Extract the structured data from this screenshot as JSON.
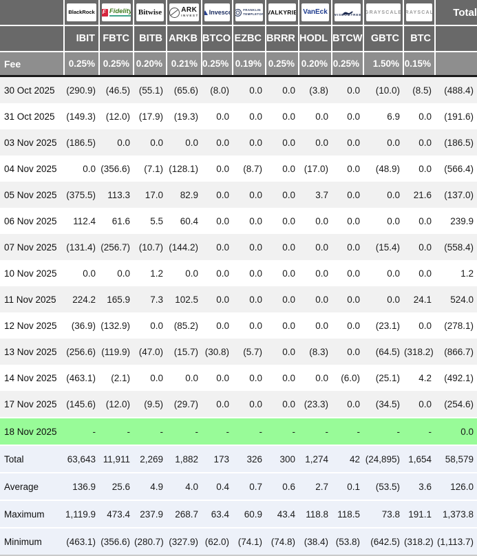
{
  "table": {
    "fee_label": "Fee",
    "total_header": "Total",
    "colors": {
      "negative_red": "#e60000",
      "active_row_green": "#98fb98",
      "header_gray": "#696969",
      "fee_row_gray": "#8e8e8e",
      "stripe_gray": "#f1f1f1",
      "summary_row_bg": "#edf1f9",
      "fidelity_red": "#d6263e",
      "fidelity_green": "#3f7a1f",
      "invesco_navy": "#16295e",
      "vaneck_blue": "#1c3a8e",
      "grayscale_gray": "#9b9b9b"
    },
    "columns": [
      {
        "id": "ibit",
        "provider": "BlackRock",
        "ticker": "IBIT",
        "fee": "0.25%",
        "logo": {
          "style": "blackrock",
          "lines": [
            "BlackRock"
          ]
        }
      },
      {
        "id": "fbtc",
        "provider": "Fidelity",
        "ticker": "FBTC",
        "fee": "0.25%",
        "logo": {
          "style": "fidelity",
          "icon": "fidelity-f",
          "icon_text": "F",
          "lines": [
            "Fidelity"
          ]
        }
      },
      {
        "id": "bitb",
        "provider": "Bitwise",
        "ticker": "BITB",
        "fee": "0.20%",
        "logo": {
          "style": "bitwise",
          "lines": [
            "Bitwise"
          ]
        }
      },
      {
        "id": "arkb",
        "provider": "ARK Invest",
        "ticker": "ARKB",
        "fee": "0.21%",
        "logo": {
          "style": "ark",
          "icon": "ark-ring",
          "lines": [
            "ARK",
            "INVEST"
          ]
        }
      },
      {
        "id": "btco",
        "provider": "Invesco",
        "ticker": "BTCO",
        "fee": "0.25%",
        "logo": {
          "style": "invesco",
          "icon": "invesco-triangle",
          "lines": [
            "Invesco"
          ]
        }
      },
      {
        "id": "ezbc",
        "provider": "Franklin Templeton",
        "ticker": "EZBC",
        "fee": "0.19%",
        "logo": {
          "style": "franklin",
          "icon": "franklin-seal",
          "lines": [
            "FRANKLIN",
            "TEMPLETON"
          ]
        }
      },
      {
        "id": "brrr",
        "provider": "Valkyrie",
        "ticker": "BRRR",
        "fee": "0.25%",
        "logo": {
          "style": "valkyrie",
          "lines": [
            "VALKYRIE"
          ]
        }
      },
      {
        "id": "hodl",
        "provider": "VanEck",
        "ticker": "HODL",
        "fee": "0.20%",
        "logo": {
          "style": "vaneck",
          "lines": [
            "VanEck"
          ]
        }
      },
      {
        "id": "btcw",
        "provider": "WisdomTree",
        "ticker": "BTCW",
        "fee": "0.25%",
        "logo": {
          "style": "wisdomtree",
          "icon": "wisdomtree-tree",
          "lines": [
            "WISDOMTREE"
          ]
        }
      },
      {
        "id": "gbtc",
        "provider": "Grayscale",
        "ticker": "GBTC",
        "fee": "1.50%",
        "logo": {
          "style": "grayscale",
          "lines": [
            "GRAYSCALE"
          ]
        }
      },
      {
        "id": "btc",
        "provider": "Grayscale",
        "ticker": "BTC",
        "fee": "0.15%",
        "logo": {
          "style": "grayscale",
          "lines": [
            "GRAYSCALE"
          ]
        }
      }
    ],
    "rows": [
      {
        "label": "30 Oct 2025",
        "values": [
          "(290.9)",
          "(46.5)",
          "(55.1)",
          "(65.6)",
          "(8.0)",
          "0.0",
          "0.0",
          "(3.8)",
          "0.0",
          "(10.0)",
          "(8.5)",
          "(488.4)"
        ]
      },
      {
        "label": "31 Oct 2025",
        "values": [
          "(149.3)",
          "(12.0)",
          "(17.9)",
          "(19.3)",
          "0.0",
          "0.0",
          "0.0",
          "0.0",
          "0.0",
          "6.9",
          "0.0",
          "(191.6)"
        ]
      },
      {
        "label": "03 Nov 2025",
        "values": [
          "(186.5)",
          "0.0",
          "0.0",
          "0.0",
          "0.0",
          "0.0",
          "0.0",
          "0.0",
          "0.0",
          "0.0",
          "0.0",
          "(186.5)"
        ]
      },
      {
        "label": "04 Nov 2025",
        "values": [
          "0.0",
          "(356.6)",
          "(7.1)",
          "(128.1)",
          "0.0",
          "(8.7)",
          "0.0",
          "(17.0)",
          "0.0",
          "(48.9)",
          "0.0",
          "(566.4)"
        ]
      },
      {
        "label": "05 Nov 2025",
        "values": [
          "(375.5)",
          "113.3",
          "17.0",
          "82.9",
          "0.0",
          "0.0",
          "0.0",
          "3.7",
          "0.0",
          "0.0",
          "21.6",
          "(137.0)"
        ]
      },
      {
        "label": "06 Nov 2025",
        "values": [
          "112.4",
          "61.6",
          "5.5",
          "60.4",
          "0.0",
          "0.0",
          "0.0",
          "0.0",
          "0.0",
          "0.0",
          "0.0",
          "239.9"
        ]
      },
      {
        "label": "07 Nov 2025",
        "values": [
          "(131.4)",
          "(256.7)",
          "(10.7)",
          "(144.2)",
          "0.0",
          "0.0",
          "0.0",
          "0.0",
          "0.0",
          "(15.4)",
          "0.0",
          "(558.4)"
        ]
      },
      {
        "label": "10 Nov 2025",
        "values": [
          "0.0",
          "0.0",
          "1.2",
          "0.0",
          "0.0",
          "0.0",
          "0.0",
          "0.0",
          "0.0",
          "0.0",
          "0.0",
          "1.2"
        ]
      },
      {
        "label": "11 Nov 2025",
        "values": [
          "224.2",
          "165.9",
          "7.3",
          "102.5",
          "0.0",
          "0.0",
          "0.0",
          "0.0",
          "0.0",
          "0.0",
          "24.1",
          "524.0"
        ]
      },
      {
        "label": "12 Nov 2025",
        "values": [
          "(36.9)",
          "(132.9)",
          "0.0",
          "(85.2)",
          "0.0",
          "0.0",
          "0.0",
          "0.0",
          "0.0",
          "(23.1)",
          "0.0",
          "(278.1)"
        ]
      },
      {
        "label": "13 Nov 2025",
        "values": [
          "(256.6)",
          "(119.9)",
          "(47.0)",
          "(15.7)",
          "(30.8)",
          "(5.7)",
          "0.0",
          "(8.3)",
          "0.0",
          "(64.5)",
          "(318.2)",
          "(866.7)"
        ]
      },
      {
        "label": "14 Nov 2025",
        "values": [
          "(463.1)",
          "(2.1)",
          "0.0",
          "0.0",
          "0.0",
          "0.0",
          "0.0",
          "0.0",
          "(6.0)",
          "(25.1)",
          "4.2",
          "(492.1)"
        ]
      },
      {
        "label": "17 Nov 2025",
        "values": [
          "(145.6)",
          "(12.0)",
          "(9.5)",
          "(29.7)",
          "0.0",
          "0.0",
          "0.0",
          "(23.3)",
          "0.0",
          "(34.5)",
          "0.0",
          "(254.6)"
        ]
      },
      {
        "label": "18 Nov 2025",
        "highlight": true,
        "values": [
          "-",
          "-",
          "-",
          "-",
          "-",
          "-",
          "-",
          "-",
          "-",
          "-",
          "-",
          "0.0"
        ]
      }
    ],
    "summary_rows": [
      {
        "label": "Total",
        "values": [
          "63,643",
          "11,911",
          "2,269",
          "1,882",
          "173",
          "326",
          "300",
          "1,274",
          "42",
          "(24,895)",
          "1,654",
          "58,579"
        ]
      },
      {
        "label": "Average",
        "values": [
          "136.9",
          "25.6",
          "4.9",
          "4.0",
          "0.4",
          "0.7",
          "0.6",
          "2.7",
          "0.1",
          "(53.5)",
          "3.6",
          "126.0"
        ]
      },
      {
        "label": "Maximum",
        "values": [
          "1,119.9",
          "473.4",
          "237.9",
          "268.7",
          "63.4",
          "60.9",
          "43.4",
          "118.8",
          "118.5",
          "73.8",
          "191.1",
          "1,373.8"
        ]
      },
      {
        "label": "Minimum",
        "values": [
          "(463.1)",
          "(356.6)",
          "(280.7)",
          "(327.9)",
          "(62.0)",
          "(74.1)",
          "(74.8)",
          "(38.4)",
          "(53.8)",
          "(642.5)",
          "(318.2)",
          "(1,113.7)"
        ]
      }
    ]
  }
}
